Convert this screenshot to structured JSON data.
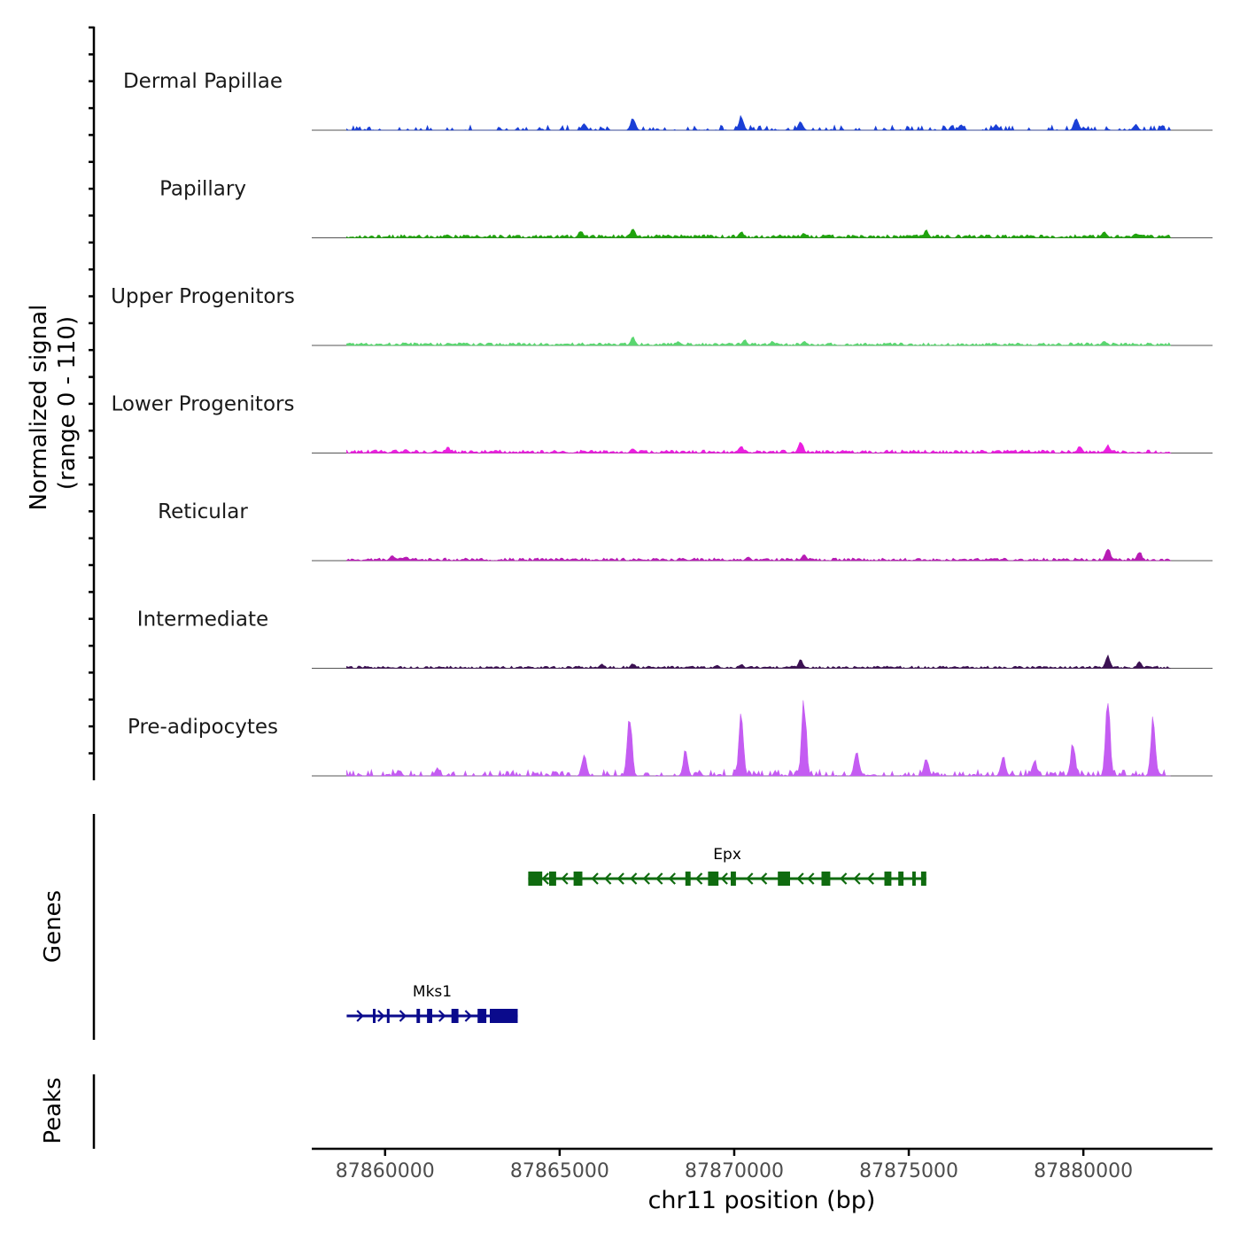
{
  "chart_data": {
    "type": "area",
    "title": "",
    "region": {
      "chrom": "chr11",
      "start": 87857900,
      "end": 87883700
    },
    "xlabel": "chr11 position (bp)",
    "x_ticks": [
      87860000,
      87865000,
      87870000,
      87875000,
      87880000
    ],
    "x_tick_labels": [
      "87860000",
      "87865000",
      "87870000",
      "87875000",
      "87880000"
    ],
    "ylabel": "Normalized signal",
    "ylabel_range": "(range 0 - 110)",
    "ylim": [
      0,
      110
    ],
    "data_start": 87858900,
    "data_end": 87882500,
    "tracks": [
      {
        "name": "Dermal Papillae",
        "color": "#1a3fd6",
        "seed": 11,
        "baseline_prob": 0.33,
        "baseline_max": 5.5,
        "peaks": [
          [
            87867100,
            16
          ],
          [
            87870200,
            17
          ],
          [
            87871900,
            11
          ],
          [
            87879800,
            16
          ],
          [
            87865700,
            8
          ],
          [
            87881500,
            7
          ],
          [
            87876500,
            7
          ],
          [
            87877500,
            7
          ]
        ]
      },
      {
        "name": "Papillary",
        "color": "#1fa30d",
        "seed": 23,
        "baseline_prob": 0.9,
        "baseline_max": 3.5,
        "peaks": [
          [
            87867100,
            11
          ],
          [
            87865600,
            9
          ],
          [
            87870200,
            8
          ],
          [
            87875500,
            9
          ],
          [
            87872000,
            6
          ],
          [
            87880600,
            7
          ],
          [
            87881500,
            6
          ]
        ]
      },
      {
        "name": "Upper Progenitors",
        "color": "#5ad670",
        "seed": 37,
        "baseline_prob": 0.9,
        "baseline_max": 3,
        "peaks": [
          [
            87867100,
            10
          ],
          [
            87870300,
            7
          ],
          [
            87868400,
            5
          ],
          [
            87880600,
            6
          ],
          [
            87872000,
            5
          ],
          [
            87871100,
            5
          ]
        ]
      },
      {
        "name": "Lower Progenitors",
        "color": "#ec1fe0",
        "seed": 41,
        "baseline_prob": 0.85,
        "baseline_max": 3.5,
        "peaks": [
          [
            87871900,
            16
          ],
          [
            87870200,
            9
          ],
          [
            87880700,
            10
          ],
          [
            87879900,
            9
          ],
          [
            87861800,
            7
          ],
          [
            87867100,
            6
          ],
          [
            87860600,
            5
          ]
        ]
      },
      {
        "name": "Reticular",
        "color": "#b71cb4",
        "seed": 53,
        "baseline_prob": 0.85,
        "baseline_max": 3,
        "peaks": [
          [
            87880700,
            17
          ],
          [
            87881600,
            12
          ],
          [
            87872000,
            8
          ],
          [
            87860200,
            7
          ],
          [
            87860600,
            5
          ],
          [
            87870400,
            5
          ]
        ]
      },
      {
        "name": "Intermediate",
        "color": "#3c1153",
        "seed": 61,
        "baseline_prob": 0.85,
        "baseline_max": 2.5,
        "peaks": [
          [
            87880700,
            16
          ],
          [
            87871900,
            10
          ],
          [
            87881600,
            8
          ],
          [
            87867100,
            6
          ],
          [
            87870200,
            5
          ],
          [
            87866200,
            5
          ],
          [
            87869500,
            4
          ]
        ]
      },
      {
        "name": "Pre-adipocytes",
        "color": "#c45cf2",
        "seed": 73,
        "baseline_prob": 0.45,
        "baseline_max": 7,
        "peaks": [
          [
            87867000,
            82
          ],
          [
            87872000,
            93
          ],
          [
            87870200,
            75
          ],
          [
            87880700,
            98
          ],
          [
            87882000,
            73
          ],
          [
            87868600,
            30
          ],
          [
            87865700,
            28
          ],
          [
            87873500,
            30
          ],
          [
            87875500,
            22
          ],
          [
            87877700,
            25
          ],
          [
            87878600,
            20
          ],
          [
            87861500,
            10
          ],
          [
            87860400,
            7
          ],
          [
            87879700,
            40
          ]
        ]
      }
    ],
    "gene_track_label": "Genes",
    "genes": [
      {
        "name": "Epx",
        "strand": "-",
        "start": 87864100,
        "end": 87875500,
        "row": 0,
        "color": "#0f6b0f",
        "exons": [
          [
            87864100,
            87864500
          ],
          [
            87864700,
            87864900
          ],
          [
            87865400,
            87865650
          ],
          [
            87868600,
            87868750
          ],
          [
            87869250,
            87869550
          ],
          [
            87869900,
            87870050
          ],
          [
            87871250,
            87871600
          ],
          [
            87872500,
            87872750
          ],
          [
            87874300,
            87874500
          ],
          [
            87874700,
            87874850
          ],
          [
            87875100,
            87875200
          ],
          [
            87875350,
            87875500
          ]
        ],
        "introns_marked": [
          [
            87864500,
            87864700
          ],
          [
            87864900,
            87865400
          ],
          [
            87865650,
            87868600
          ],
          [
            87868750,
            87869250
          ],
          [
            87869550,
            87869900
          ],
          [
            87870050,
            87871250
          ],
          [
            87871600,
            87872500
          ],
          [
            87872750,
            87874300
          ]
        ]
      },
      {
        "name": "Mks1",
        "strand": "+",
        "start": 87858900,
        "end": 87863800,
        "row": 1,
        "color": "#0a0a8c",
        "exons": [
          [
            87859650,
            87859700
          ],
          [
            87860050,
            87860100
          ],
          [
            87860900,
            87861000
          ],
          [
            87861200,
            87861350
          ],
          [
            87861900,
            87862100
          ],
          [
            87862650,
            87862900
          ],
          [
            87863000,
            87863800
          ]
        ],
        "introns_marked": [
          [
            87858900,
            87859650
          ],
          [
            87859700,
            87860050
          ],
          [
            87860100,
            87860900
          ],
          [
            87861350,
            87861900
          ],
          [
            87862100,
            87862650
          ]
        ]
      }
    ],
    "peak_track_label": "Peaks",
    "peak_regions": []
  }
}
